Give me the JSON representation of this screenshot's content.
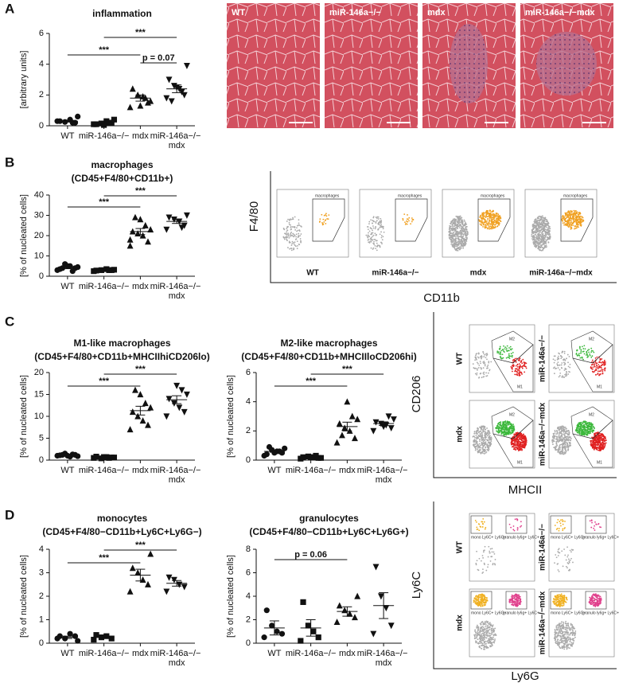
{
  "panel_labels": [
    "A",
    "B",
    "C",
    "D"
  ],
  "histology": {
    "labels": [
      "WT",
      "miR-146a−/−",
      "mdx",
      "miR-146a−/−mdx"
    ]
  },
  "flow_macrophages": {
    "y_label": "F4/80",
    "x_label": "CD11b",
    "gate": "macrophages",
    "samples": [
      "WT",
      "miR-146a−/−",
      "mdx",
      "miR-146a−/−mdx"
    ]
  },
  "flow_m1m2": {
    "y_label": "CD206",
    "x_label": "MHCII",
    "gates": [
      "M2",
      "M1"
    ],
    "samples": [
      "WT",
      "miR-146a−/−",
      "mdx",
      "miR-146a−/−mdx"
    ]
  },
  "flow_ly6": {
    "y_label": "Ly6C",
    "x_label": "Ly6G",
    "gates": [
      "mono Ly6C+ Ly6G−",
      "granulo ly6g+ Ly6C+"
    ],
    "samples": [
      "WT",
      "miR-146a−/−",
      "mdx",
      "miR-146a−/−mdx"
    ]
  },
  "chart_data": [
    {
      "type": "dot",
      "title": "inflammation",
      "y_label": "[arbitrary units]",
      "categories": [
        "WT",
        "miR-146a−/−",
        "mdx",
        "miR-146a−/− mdx"
      ],
      "markers": [
        "circle",
        "square",
        "triangle",
        "triangle-down"
      ],
      "values": [
        [
          0.3,
          0.2,
          0.4,
          0.25,
          0.3,
          0.6,
          0.2
        ],
        [
          0.1,
          0.2,
          0.3,
          0.15,
          0.1,
          0.4,
          0.2,
          0.05
        ],
        [
          1.2,
          1.5,
          1.9,
          2.0,
          2.4,
          1.6,
          1.8,
          1.3
        ],
        [
          1.8,
          2.0,
          2.4,
          2.6,
          3.0,
          3.9,
          2.2,
          2.5,
          1.6
        ]
      ],
      "mean": [
        0.3,
        0.2,
        1.8,
        2.4
      ],
      "sem": [
        0.06,
        0.05,
        0.2,
        0.25
      ],
      "annotations": [
        "***",
        "***",
        "p = 0.07"
      ],
      "ylim": [
        0,
        6
      ],
      "yticks": [
        0,
        2,
        4,
        6
      ]
    },
    {
      "type": "dot",
      "title": "macrophages",
      "subtitle": "(CD45+F4/80+CD11b+)",
      "y_label": "[% of nucleated cells]",
      "categories": [
        "WT",
        "miR-146a−/−",
        "mdx",
        "miR-146a−/− mdx"
      ],
      "markers": [
        "circle",
        "square",
        "triangle",
        "triangle-down"
      ],
      "values": [
        [
          3,
          4,
          5,
          6,
          3.5,
          4.5,
          2.5,
          5,
          4
        ],
        [
          2.5,
          3,
          3.5,
          3,
          2.8,
          3.2,
          3
        ],
        [
          15,
          17,
          20,
          21,
          22,
          23,
          25,
          28,
          29,
          18
        ],
        [
          23,
          25,
          27,
          28,
          29,
          30,
          24
        ]
      ],
      "mean": [
        4.2,
        3,
        22,
        27
      ],
      "sem": [
        0.5,
        0.2,
        1.5,
        1
      ],
      "annotations": [
        "***",
        "***"
      ],
      "ylim": [
        0,
        40
      ],
      "yticks": [
        0,
        10,
        20,
        30,
        40
      ]
    },
    {
      "type": "dot",
      "title": "M1-like macrophages",
      "subtitle": "(CD45+F4/80+CD11b+MHCIIhiCD206lo)",
      "y_label": "[% of nucleated cells]",
      "categories": [
        "WT",
        "miR-146a−/−",
        "mdx",
        "miR-146a−/− mdx"
      ],
      "markers": [
        "circle",
        "square",
        "triangle",
        "triangle-down"
      ],
      "values": [
        [
          1.0,
          1.2,
          0.8,
          1.5,
          1.1,
          0.9,
          1.3,
          1.0,
          1.2
        ],
        [
          0.5,
          0.6,
          0.7,
          0.4,
          0.8,
          0.6,
          0.5,
          0.7
        ],
        [
          7,
          8,
          9,
          10,
          11,
          12,
          13,
          15,
          16
        ],
        [
          10,
          11,
          12,
          13,
          14,
          15,
          16,
          17
        ]
      ],
      "mean": [
        1.1,
        0.6,
        11.3,
        13.8
      ],
      "sem": [
        0.1,
        0.05,
        1,
        0.9
      ],
      "annotations": [
        "***",
        "***"
      ],
      "ylim": [
        0,
        20
      ],
      "yticks": [
        0,
        5,
        10,
        15,
        20
      ]
    },
    {
      "type": "dot",
      "title": "M2-like macrophages",
      "subtitle": "(CD45+F4/80+CD11b+MHCIIloCD206hi)",
      "y_label": "[% of nucleated cells]",
      "categories": [
        "WT",
        "miR-146a−/−",
        "mdx",
        "miR-146a−/− mdx"
      ],
      "markers": [
        "circle",
        "square",
        "triangle",
        "triangle-down"
      ],
      "values": [
        [
          0.3,
          0.5,
          0.6,
          0.7,
          0.4,
          0.8,
          0.6,
          0.5,
          0.9
        ],
        [
          0.1,
          0.15,
          0.2,
          0.25,
          0.2,
          0.15,
          0.3,
          0.2
        ],
        [
          1.2,
          1.5,
          2.0,
          2.2,
          2.5,
          2.8,
          3.0,
          4.0,
          1.7
        ],
        [
          2.0,
          2.2,
          2.4,
          2.5,
          2.6,
          2.8,
          3.0,
          2.3
        ]
      ],
      "mean": [
        0.6,
        0.2,
        2.3,
        2.5
      ],
      "sem": [
        0.06,
        0.02,
        0.3,
        0.12
      ],
      "annotations": [
        "***",
        "***"
      ],
      "ylim": [
        0,
        6
      ],
      "yticks": [
        0,
        2,
        4,
        6
      ]
    },
    {
      "type": "dot",
      "title": "monocytes",
      "subtitle": "(CD45+F4/80−CD11b+Ly6C+Ly6G−)",
      "y_label": "[% of nucleated cells]",
      "categories": [
        "WT",
        "miR-146a−/−",
        "mdx",
        "miR-146a−/− mdx"
      ],
      "markers": [
        "circle",
        "square",
        "triangle",
        "triangle-down"
      ],
      "values": [
        [
          0.2,
          0.3,
          0.4,
          0.2,
          0.3,
          0.1
        ],
        [
          0.15,
          0.2,
          0.3,
          0.25,
          0.35
        ],
        [
          2.2,
          2.5,
          2.7,
          3.0,
          3.2,
          3.8
        ],
        [
          2.2,
          2.4,
          2.5,
          2.7,
          2.8
        ]
      ],
      "mean": [
        0.25,
        0.25,
        2.9,
        2.55
      ],
      "sem": [
        0.05,
        0.04,
        0.25,
        0.12
      ],
      "annotations": [
        "***",
        "***"
      ],
      "ylim": [
        0,
        4
      ],
      "yticks": [
        0,
        1,
        2,
        3,
        4
      ]
    },
    {
      "type": "dot",
      "title": "granulocytes",
      "subtitle": "(CD45+F4/80−CD11b+Ly6C+Ly6G+)",
      "y_label": "[% of nucleated cells]",
      "categories": [
        "WT",
        "miR-146a−/−",
        "mdx",
        "miR-146a−/− mdx"
      ],
      "markers": [
        "circle",
        "square",
        "triangle",
        "triangle-down"
      ],
      "values": [
        [
          0.5,
          0.8,
          1,
          1.5,
          2.8
        ],
        [
          0.2,
          0.5,
          1.0,
          1.5,
          3.5
        ],
        [
          1.8,
          2.2,
          2.5,
          2.8,
          3.2,
          4.0
        ],
        [
          0.8,
          1.5,
          3.0,
          4.0,
          6.5
        ]
      ],
      "mean": [
        1.3,
        1.3,
        2.7,
        3.2
      ],
      "sem": [
        0.6,
        0.7,
        0.4,
        1.1
      ],
      "annotations": [
        "p = 0.06"
      ],
      "ylim": [
        0,
        8
      ],
      "yticks": [
        0,
        2,
        4,
        6,
        8
      ]
    }
  ]
}
